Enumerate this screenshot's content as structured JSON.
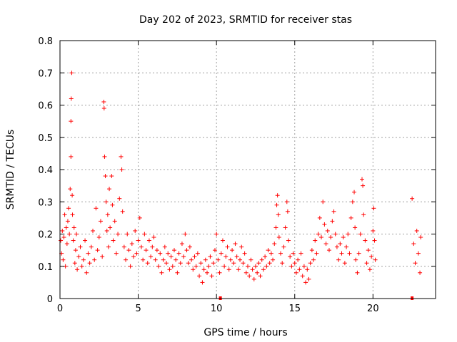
{
  "chart_data": {
    "type": "scatter",
    "title": "Day 202 of 2023, SRMTID for receiver stas",
    "xlabel": "GPS time / hours",
    "ylabel": "SRMTID / TECUs",
    "xlim": [
      0,
      24
    ],
    "ylim": [
      0,
      0.8
    ],
    "x_ticks": [
      0,
      5,
      10,
      15,
      20
    ],
    "x_tick_labels": [
      "0",
      "5",
      "10",
      "15",
      "20"
    ],
    "y_ticks": [
      0,
      0.1,
      0.2,
      0.3,
      0.4,
      0.5,
      0.6,
      0.7,
      0.8
    ],
    "y_tick_labels": [
      "0",
      "0.1",
      "0.2",
      "0.3",
      "0.4",
      "0.5",
      "0.6",
      "0.7",
      "0.8"
    ],
    "grid": true,
    "marker": "plus",
    "color": "#ff0000",
    "series": [
      {
        "name": "stas",
        "points": [
          [
            0.05,
            0.18
          ],
          [
            0.1,
            0.14
          ],
          [
            0.15,
            0.21
          ],
          [
            0.2,
            0.12
          ],
          [
            0.25,
            0.19
          ],
          [
            0.3,
            0.26
          ],
          [
            0.35,
            0.1
          ],
          [
            0.4,
            0.22
          ],
          [
            0.45,
            0.17
          ],
          [
            0.5,
            0.24
          ],
          [
            0.55,
            0.28
          ],
          [
            0.6,
            0.2
          ],
          [
            0.65,
            0.34
          ],
          [
            0.7,
            0.55
          ],
          [
            0.7,
            0.44
          ],
          [
            0.72,
            0.62
          ],
          [
            0.75,
            0.7
          ],
          [
            0.78,
            0.32
          ],
          [
            0.8,
            0.26
          ],
          [
            0.85,
            0.18
          ],
          [
            0.9,
            0.22
          ],
          [
            0.95,
            0.11
          ],
          [
            1.0,
            0.15
          ],
          [
            1.05,
            0.2
          ],
          [
            1.1,
            0.09
          ],
          [
            1.2,
            0.13
          ],
          [
            1.3,
            0.16
          ],
          [
            1.4,
            0.1
          ],
          [
            1.5,
            0.12
          ],
          [
            1.6,
            0.18
          ],
          [
            1.7,
            0.08
          ],
          [
            1.8,
            0.14
          ],
          [
            1.9,
            0.11
          ],
          [
            2.0,
            0.16
          ],
          [
            2.1,
            0.21
          ],
          [
            2.2,
            0.12
          ],
          [
            2.3,
            0.28
          ],
          [
            2.4,
            0.15
          ],
          [
            2.5,
            0.19
          ],
          [
            2.6,
            0.24
          ],
          [
            2.7,
            0.13
          ],
          [
            2.8,
            0.61
          ],
          [
            2.82,
            0.59
          ],
          [
            2.85,
            0.44
          ],
          [
            2.9,
            0.38
          ],
          [
            2.95,
            0.3
          ],
          [
            3.0,
            0.21
          ],
          [
            3.05,
            0.26
          ],
          [
            3.1,
            0.16
          ],
          [
            3.15,
            0.34
          ],
          [
            3.2,
            0.22
          ],
          [
            3.3,
            0.38
          ],
          [
            3.35,
            0.29
          ],
          [
            3.4,
            0.18
          ],
          [
            3.5,
            0.24
          ],
          [
            3.6,
            0.14
          ],
          [
            3.7,
            0.2
          ],
          [
            3.8,
            0.31
          ],
          [
            3.9,
            0.44
          ],
          [
            3.95,
            0.4
          ],
          [
            4.0,
            0.27
          ],
          [
            4.1,
            0.16
          ],
          [
            4.2,
            0.12
          ],
          [
            4.3,
            0.2
          ],
          [
            4.4,
            0.15
          ],
          [
            4.5,
            0.1
          ],
          [
            4.6,
            0.17
          ],
          [
            4.7,
            0.13
          ],
          [
            4.8,
            0.21
          ],
          [
            4.9,
            0.14
          ],
          [
            5.0,
            0.18
          ],
          [
            5.1,
            0.25
          ],
          [
            5.2,
            0.16
          ],
          [
            5.3,
            0.12
          ],
          [
            5.4,
            0.2
          ],
          [
            5.5,
            0.15
          ],
          [
            5.6,
            0.11
          ],
          [
            5.7,
            0.18
          ],
          [
            5.8,
            0.13
          ],
          [
            5.9,
            0.16
          ],
          [
            6.0,
            0.19
          ],
          [
            6.1,
            0.12
          ],
          [
            6.2,
            0.15
          ],
          [
            6.3,
            0.1
          ],
          [
            6.4,
            0.14
          ],
          [
            6.5,
            0.08
          ],
          [
            6.6,
            0.12
          ],
          [
            6.7,
            0.16
          ],
          [
            6.8,
            0.11
          ],
          [
            6.9,
            0.14
          ],
          [
            7.0,
            0.09
          ],
          [
            7.1,
            0.13
          ],
          [
            7.2,
            0.1
          ],
          [
            7.3,
            0.15
          ],
          [
            7.4,
            0.12
          ],
          [
            7.5,
            0.08
          ],
          [
            7.6,
            0.14
          ],
          [
            7.7,
            0.11
          ],
          [
            7.8,
            0.17
          ],
          [
            7.9,
            0.13
          ],
          [
            8.0,
            0.2
          ],
          [
            8.1,
            0.15
          ],
          [
            8.2,
            0.11
          ],
          [
            8.3,
            0.16
          ],
          [
            8.4,
            0.12
          ],
          [
            8.5,
            0.09
          ],
          [
            8.6,
            0.13
          ],
          [
            8.7,
            0.1
          ],
          [
            8.8,
            0.14
          ],
          [
            8.9,
            0.07
          ],
          [
            9.0,
            0.11
          ],
          [
            9.1,
            0.05
          ],
          [
            9.2,
            0.09
          ],
          [
            9.3,
            0.12
          ],
          [
            9.4,
            0.08
          ],
          [
            9.5,
            0.1
          ],
          [
            9.6,
            0.13
          ],
          [
            9.7,
            0.07
          ],
          [
            9.8,
            0.11
          ],
          [
            9.9,
            0.15
          ],
          [
            10.0,
            0.2
          ],
          [
            10.1,
            0.12
          ],
          [
            10.2,
            0.08
          ],
          [
            10.3,
            0.14
          ],
          [
            10.4,
            0.18
          ],
          [
            10.5,
            0.1
          ],
          [
            10.6,
            0.13
          ],
          [
            10.7,
            0.16
          ],
          [
            10.8,
            0.09
          ],
          [
            10.9,
            0.12
          ],
          [
            11.0,
            0.15
          ],
          [
            11.1,
            0.11
          ],
          [
            11.2,
            0.17
          ],
          [
            11.3,
            0.13
          ],
          [
            11.4,
            0.09
          ],
          [
            11.5,
            0.12
          ],
          [
            11.6,
            0.16
          ],
          [
            11.7,
            0.11
          ],
          [
            11.8,
            0.14
          ],
          [
            11.9,
            0.08
          ],
          [
            12.0,
            0.1
          ],
          [
            12.1,
            0.07
          ],
          [
            12.2,
            0.12
          ],
          [
            12.3,
            0.09
          ],
          [
            12.4,
            0.06
          ],
          [
            12.5,
            0.1
          ],
          [
            12.6,
            0.08
          ],
          [
            12.7,
            0.11
          ],
          [
            12.8,
            0.07
          ],
          [
            12.9,
            0.12
          ],
          [
            13.0,
            0.09
          ],
          [
            13.1,
            0.13
          ],
          [
            13.2,
            0.1
          ],
          [
            13.3,
            0.15
          ],
          [
            13.4,
            0.11
          ],
          [
            13.5,
            0.14
          ],
          [
            13.6,
            0.12
          ],
          [
            13.7,
            0.17
          ],
          [
            13.8,
            0.22
          ],
          [
            13.85,
            0.29
          ],
          [
            13.9,
            0.32
          ],
          [
            13.95,
            0.26
          ],
          [
            14.0,
            0.19
          ],
          [
            14.1,
            0.14
          ],
          [
            14.2,
            0.11
          ],
          [
            14.3,
            0.16
          ],
          [
            14.4,
            0.22
          ],
          [
            14.5,
            0.3
          ],
          [
            14.55,
            0.27
          ],
          [
            14.6,
            0.18
          ],
          [
            14.7,
            0.13
          ],
          [
            14.8,
            0.1
          ],
          [
            14.9,
            0.14
          ],
          [
            15.0,
            0.11
          ],
          [
            15.1,
            0.08
          ],
          [
            15.2,
            0.12
          ],
          [
            15.3,
            0.09
          ],
          [
            15.4,
            0.14
          ],
          [
            15.5,
            0.07
          ],
          [
            15.6,
            0.1
          ],
          [
            15.7,
            0.05
          ],
          [
            15.8,
            0.09
          ],
          [
            15.9,
            0.06
          ],
          [
            16.0,
            0.11
          ],
          [
            16.1,
            0.15
          ],
          [
            16.2,
            0.12
          ],
          [
            16.3,
            0.18
          ],
          [
            16.4,
            0.14
          ],
          [
            16.5,
            0.2
          ],
          [
            16.6,
            0.25
          ],
          [
            16.7,
            0.19
          ],
          [
            16.8,
            0.3
          ],
          [
            16.9,
            0.23
          ],
          [
            17.0,
            0.17
          ],
          [
            17.1,
            0.21
          ],
          [
            17.2,
            0.15
          ],
          [
            17.3,
            0.19
          ],
          [
            17.4,
            0.24
          ],
          [
            17.5,
            0.27
          ],
          [
            17.6,
            0.2
          ],
          [
            17.7,
            0.16
          ],
          [
            17.8,
            0.12
          ],
          [
            17.9,
            0.17
          ],
          [
            18.0,
            0.14
          ],
          [
            18.1,
            0.19
          ],
          [
            18.2,
            0.11
          ],
          [
            18.3,
            0.16
          ],
          [
            18.4,
            0.2
          ],
          [
            18.5,
            0.14
          ],
          [
            18.6,
            0.25
          ],
          [
            18.7,
            0.3
          ],
          [
            18.8,
            0.33
          ],
          [
            18.85,
            0.22
          ],
          [
            18.9,
            0.12
          ],
          [
            19.0,
            0.08
          ],
          [
            19.1,
            0.14
          ],
          [
            19.2,
            0.2
          ],
          [
            19.3,
            0.37
          ],
          [
            19.35,
            0.35
          ],
          [
            19.4,
            0.26
          ],
          [
            19.5,
            0.18
          ],
          [
            19.6,
            0.11
          ],
          [
            19.7,
            0.15
          ],
          [
            19.8,
            0.09
          ],
          [
            19.9,
            0.13
          ],
          [
            20.0,
            0.21
          ],
          [
            20.05,
            0.28
          ],
          [
            20.1,
            0.18
          ],
          [
            20.15,
            0.12
          ],
          [
            22.5,
            0.31
          ],
          [
            22.6,
            0.17
          ],
          [
            22.7,
            0.11
          ],
          [
            22.8,
            0.21
          ],
          [
            22.9,
            0.14
          ],
          [
            23.0,
            0.08
          ],
          [
            23.05,
            0.19
          ],
          [
            10.25,
            0.0
          ],
          [
            22.5,
            0.0
          ]
        ]
      }
    ]
  }
}
